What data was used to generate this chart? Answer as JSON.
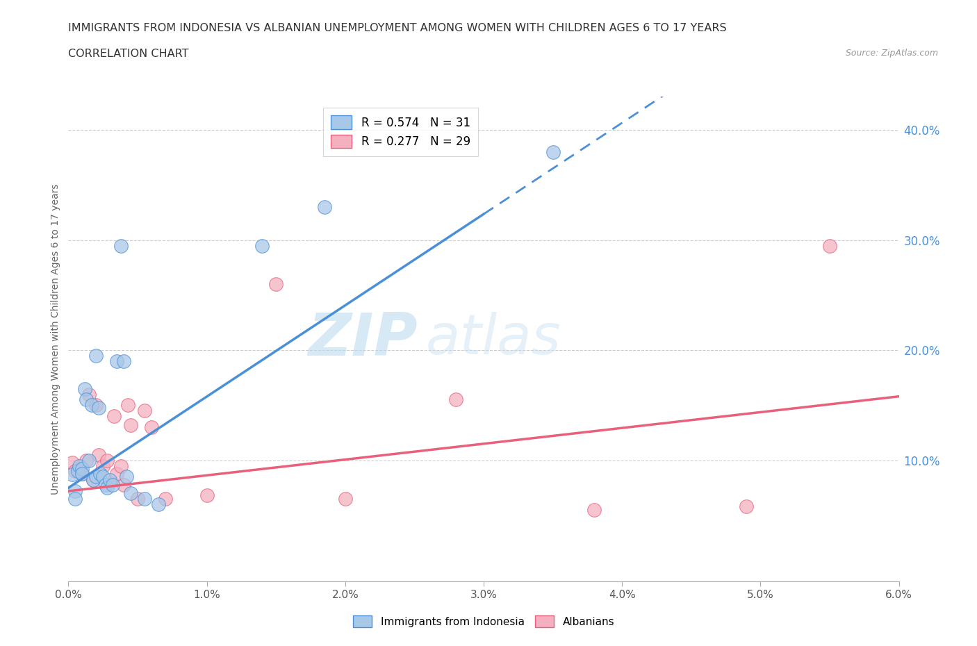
{
  "title": "IMMIGRANTS FROM INDONESIA VS ALBANIAN UNEMPLOYMENT AMONG WOMEN WITH CHILDREN AGES 6 TO 17 YEARS",
  "subtitle": "CORRELATION CHART",
  "source": "Source: ZipAtlas.com",
  "xlim": [
    0.0,
    0.06
  ],
  "ylim": [
    -0.01,
    0.43
  ],
  "ylabel_values": [
    0.1,
    0.2,
    0.3,
    0.4
  ],
  "ylabel_labels": [
    "10.0%",
    "20.0%",
    "30.0%",
    "40.0%"
  ],
  "xtick_values": [
    0.0,
    0.01,
    0.02,
    0.03,
    0.04,
    0.05,
    0.06
  ],
  "xtick_labels": [
    "0.0%",
    "1.0%",
    "2.0%",
    "3.0%",
    "4.0%",
    "5.0%",
    "6.0%"
  ],
  "legend1_label": "R = 0.574   N = 31",
  "legend2_label": "R = 0.277   N = 29",
  "color_indonesia": "#a8c8e8",
  "color_albanian": "#f4b0c0",
  "color_line_indonesia": "#4a90d9",
  "color_line_albanian": "#e8607a",
  "watermark_text": "ZIP",
  "watermark_text2": "atlas",
  "indonesia_x": [
    0.0003,
    0.0005,
    0.0005,
    0.0007,
    0.0008,
    0.001,
    0.001,
    0.0012,
    0.0013,
    0.0015,
    0.0017,
    0.0018,
    0.002,
    0.002,
    0.0022,
    0.0023,
    0.0025,
    0.0027,
    0.0028,
    0.003,
    0.0032,
    0.0035,
    0.0038,
    0.004,
    0.0042,
    0.0045,
    0.0055,
    0.0065,
    0.014,
    0.0185,
    0.035
  ],
  "indonesia_y": [
    0.087,
    0.072,
    0.065,
    0.09,
    0.095,
    0.092,
    0.088,
    0.165,
    0.155,
    0.1,
    0.15,
    0.082,
    0.195,
    0.085,
    0.148,
    0.088,
    0.085,
    0.078,
    0.075,
    0.082,
    0.078,
    0.19,
    0.295,
    0.19,
    0.085,
    0.07,
    0.065,
    0.06,
    0.295,
    0.33,
    0.38
  ],
  "albanian_x": [
    0.0003,
    0.0005,
    0.0008,
    0.001,
    0.0013,
    0.0015,
    0.0018,
    0.002,
    0.0022,
    0.0025,
    0.0028,
    0.003,
    0.0033,
    0.0035,
    0.0038,
    0.004,
    0.0043,
    0.0045,
    0.005,
    0.0055,
    0.006,
    0.007,
    0.01,
    0.015,
    0.02,
    0.028,
    0.038,
    0.049,
    0.055
  ],
  "albanian_y": [
    0.098,
    0.09,
    0.092,
    0.088,
    0.1,
    0.16,
    0.082,
    0.15,
    0.105,
    0.095,
    0.1,
    0.08,
    0.14,
    0.088,
    0.095,
    0.078,
    0.15,
    0.132,
    0.065,
    0.145,
    0.13,
    0.065,
    0.068,
    0.26,
    0.065,
    0.155,
    0.055,
    0.058,
    0.295
  ],
  "regression_blue_x0": 0.0,
  "regression_blue_y0": 0.075,
  "regression_blue_x1": 0.035,
  "regression_blue_y1": 0.365,
  "regression_blue_solid_end": 0.03,
  "regression_pink_x0": 0.0,
  "regression_pink_y0": 0.072,
  "regression_pink_x1": 0.06,
  "regression_pink_y1": 0.158
}
